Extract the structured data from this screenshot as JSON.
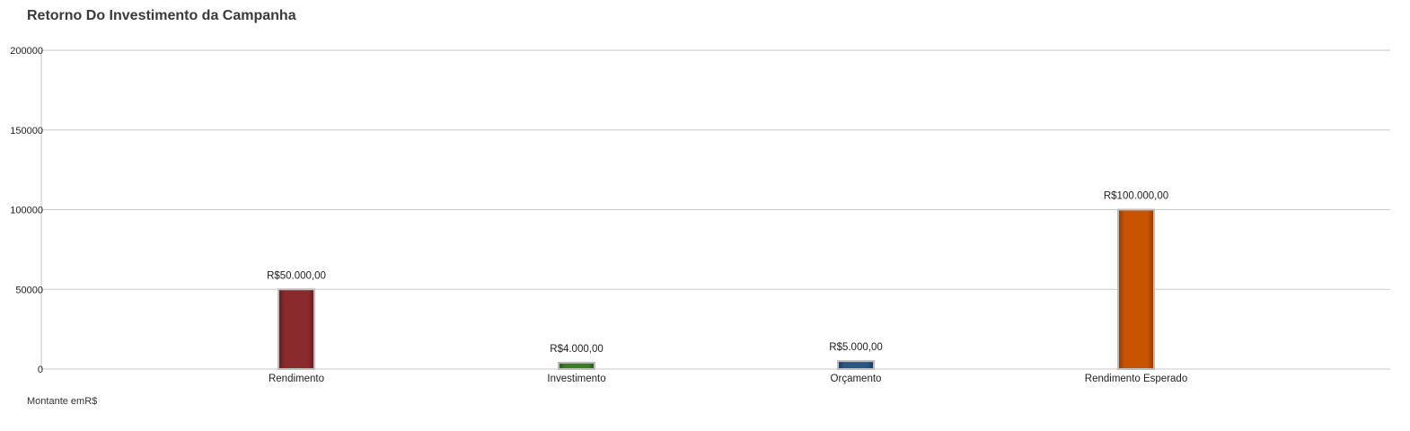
{
  "chart_title": "Retorno Do Investimento da Campanha",
  "footnote": "Montante emR$",
  "chart_data": {
    "type": "bar",
    "title": "Retorno Do Investimento da Campanha",
    "xlabel": "",
    "ylabel": "",
    "ylim": [
      0,
      200000
    ],
    "yticks": [
      0,
      50000,
      100000,
      150000,
      200000
    ],
    "ytick_labels": [
      "0",
      "50000",
      "100000",
      "150000",
      "200000"
    ],
    "grid": true,
    "categories": [
      "Rendimento",
      "Investimento",
      "Orçamento",
      "Rendimento Esperado"
    ],
    "values": [
      50000,
      4000,
      5000,
      100000
    ],
    "data_labels": [
      "R$50.000,00",
      "R$4.000,00",
      "R$5.000,00",
      "R$100.000,00"
    ],
    "colors": [
      "#8b2a2d",
      "#3f7a2a",
      "#2d5580",
      "#c85400"
    ]
  }
}
